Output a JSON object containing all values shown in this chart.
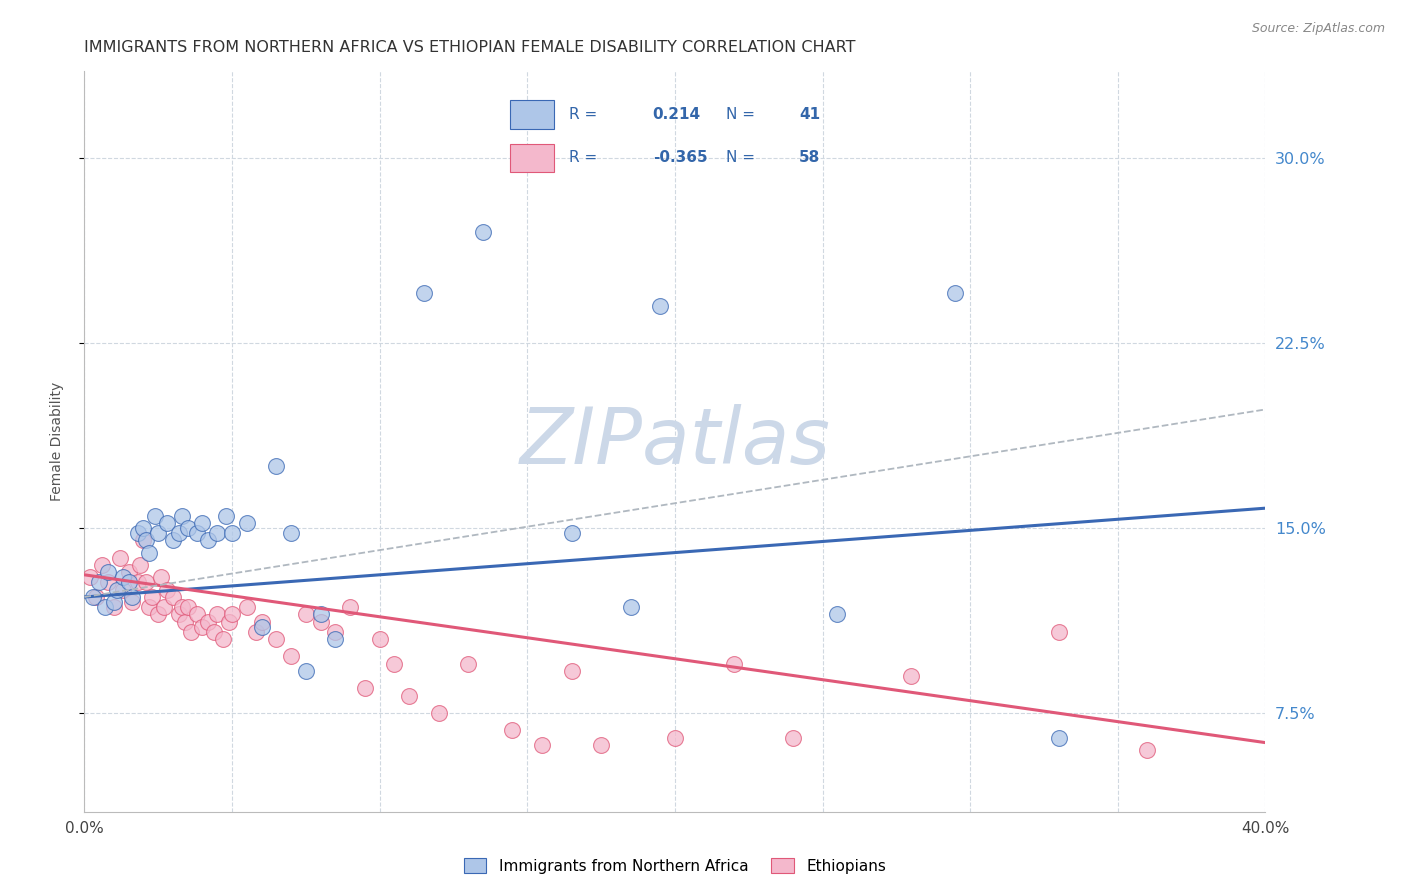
{
  "title": "IMMIGRANTS FROM NORTHERN AFRICA VS ETHIOPIAN FEMALE DISABILITY CORRELATION CHART",
  "source": "Source: ZipAtlas.com",
  "ylabel": "Female Disability",
  "yticks": [
    "7.5%",
    "15.0%",
    "22.5%",
    "30.0%"
  ],
  "ytick_vals": [
    0.075,
    0.15,
    0.225,
    0.3
  ],
  "xlim": [
    0.0,
    0.4
  ],
  "ylim": [
    0.035,
    0.335
  ],
  "watermark": "ZIPatlas",
  "series1_color": "#aec6e8",
  "series2_color": "#f4b8cc",
  "line1_color": "#3a68b4",
  "line2_color": "#e05878",
  "dashed_line_color": "#b0b8c0",
  "blue_dots": [
    [
      0.003,
      0.122
    ],
    [
      0.005,
      0.128
    ],
    [
      0.007,
      0.118
    ],
    [
      0.008,
      0.132
    ],
    [
      0.01,
      0.12
    ],
    [
      0.011,
      0.125
    ],
    [
      0.013,
      0.13
    ],
    [
      0.015,
      0.128
    ],
    [
      0.016,
      0.122
    ],
    [
      0.018,
      0.148
    ],
    [
      0.02,
      0.15
    ],
    [
      0.021,
      0.145
    ],
    [
      0.022,
      0.14
    ],
    [
      0.024,
      0.155
    ],
    [
      0.025,
      0.148
    ],
    [
      0.028,
      0.152
    ],
    [
      0.03,
      0.145
    ],
    [
      0.032,
      0.148
    ],
    [
      0.033,
      0.155
    ],
    [
      0.035,
      0.15
    ],
    [
      0.038,
      0.148
    ],
    [
      0.04,
      0.152
    ],
    [
      0.042,
      0.145
    ],
    [
      0.045,
      0.148
    ],
    [
      0.048,
      0.155
    ],
    [
      0.05,
      0.148
    ],
    [
      0.055,
      0.152
    ],
    [
      0.06,
      0.11
    ],
    [
      0.065,
      0.175
    ],
    [
      0.07,
      0.148
    ],
    [
      0.075,
      0.092
    ],
    [
      0.08,
      0.115
    ],
    [
      0.085,
      0.105
    ],
    [
      0.115,
      0.245
    ],
    [
      0.135,
      0.27
    ],
    [
      0.165,
      0.148
    ],
    [
      0.185,
      0.118
    ],
    [
      0.195,
      0.24
    ],
    [
      0.255,
      0.115
    ],
    [
      0.295,
      0.245
    ],
    [
      0.33,
      0.065
    ]
  ],
  "pink_dots": [
    [
      0.002,
      0.13
    ],
    [
      0.004,
      0.122
    ],
    [
      0.006,
      0.135
    ],
    [
      0.008,
      0.128
    ],
    [
      0.01,
      0.118
    ],
    [
      0.012,
      0.138
    ],
    [
      0.013,
      0.125
    ],
    [
      0.015,
      0.132
    ],
    [
      0.016,
      0.12
    ],
    [
      0.018,
      0.128
    ],
    [
      0.019,
      0.135
    ],
    [
      0.02,
      0.145
    ],
    [
      0.021,
      0.128
    ],
    [
      0.022,
      0.118
    ],
    [
      0.023,
      0.122
    ],
    [
      0.025,
      0.115
    ],
    [
      0.026,
      0.13
    ],
    [
      0.027,
      0.118
    ],
    [
      0.028,
      0.125
    ],
    [
      0.03,
      0.122
    ],
    [
      0.032,
      0.115
    ],
    [
      0.033,
      0.118
    ],
    [
      0.034,
      0.112
    ],
    [
      0.035,
      0.118
    ],
    [
      0.036,
      0.108
    ],
    [
      0.038,
      0.115
    ],
    [
      0.04,
      0.11
    ],
    [
      0.042,
      0.112
    ],
    [
      0.044,
      0.108
    ],
    [
      0.045,
      0.115
    ],
    [
      0.047,
      0.105
    ],
    [
      0.049,
      0.112
    ],
    [
      0.05,
      0.115
    ],
    [
      0.055,
      0.118
    ],
    [
      0.058,
      0.108
    ],
    [
      0.06,
      0.112
    ],
    [
      0.065,
      0.105
    ],
    [
      0.07,
      0.098
    ],
    [
      0.075,
      0.115
    ],
    [
      0.08,
      0.112
    ],
    [
      0.085,
      0.108
    ],
    [
      0.09,
      0.118
    ],
    [
      0.095,
      0.085
    ],
    [
      0.1,
      0.105
    ],
    [
      0.105,
      0.095
    ],
    [
      0.11,
      0.082
    ],
    [
      0.12,
      0.075
    ],
    [
      0.13,
      0.095
    ],
    [
      0.145,
      0.068
    ],
    [
      0.155,
      0.062
    ],
    [
      0.165,
      0.092
    ],
    [
      0.175,
      0.062
    ],
    [
      0.2,
      0.065
    ],
    [
      0.22,
      0.095
    ],
    [
      0.24,
      0.065
    ],
    [
      0.28,
      0.09
    ],
    [
      0.33,
      0.108
    ],
    [
      0.36,
      0.06
    ]
  ],
  "blue_line_x": [
    0.0,
    0.4
  ],
  "blue_line_y": [
    0.122,
    0.158
  ],
  "pink_line_x": [
    0.0,
    0.4
  ],
  "pink_line_y": [
    0.131,
    0.063
  ],
  "dashed_line_x": [
    0.0,
    0.4
  ],
  "dashed_line_y": [
    0.122,
    0.198
  ],
  "background_color": "#ffffff",
  "grid_color": "#d0d8e0",
  "right_label_color": "#4488cc",
  "title_fontsize": 11.5,
  "axis_label_fontsize": 10,
  "legend_fontsize": 11,
  "watermark_color": "#ccd8e8",
  "watermark_fontsize": 56,
  "legend_text_color": "#3366aa",
  "legend_border_color": "#c8d8e8"
}
